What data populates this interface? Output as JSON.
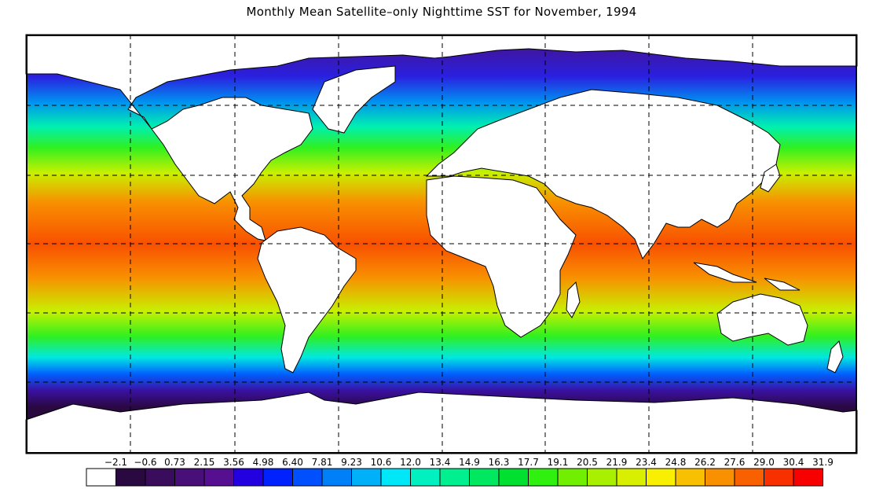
{
  "title": "Monthly Mean Satellite–only Nighttime SST for November, 1994",
  "map": {
    "projection": "equirectangular",
    "land_color": "#ffffff",
    "graticule": "dashed lines every 45 degrees longitude and 30 degrees latitude"
  },
  "colorbar": {
    "labels": [
      "−2.1",
      "−0.6",
      "0.73",
      "2.15",
      "3.56",
      "4.98",
      "6.40",
      "7.81",
      "9.23",
      "10.6",
      "12.0",
      "13.4",
      "14.9",
      "16.3",
      "17.7",
      "19.1",
      "20.5",
      "21.9",
      "23.4",
      "24.8",
      "26.2",
      "27.6",
      "29.0",
      "30.4",
      "31.9"
    ],
    "colors": [
      "#ffffff",
      "#2a0840",
      "#3a0c5c",
      "#480f78",
      "#550f90",
      "#2200e0",
      "#0022ff",
      "#0050ff",
      "#0080f8",
      "#00b0f8",
      "#00e8f8",
      "#00f0c0",
      "#00f090",
      "#00e860",
      "#00e030",
      "#30f010",
      "#70f000",
      "#a8f000",
      "#d8f000",
      "#f8f000",
      "#f8c000",
      "#f89000",
      "#f86000",
      "#f83000",
      "#f80000"
    ]
  }
}
